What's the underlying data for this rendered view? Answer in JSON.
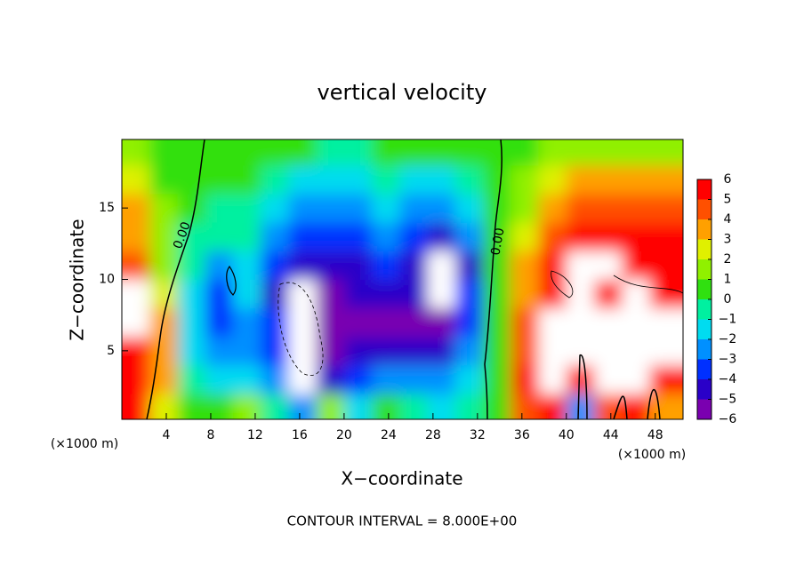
{
  "chart_data": {
    "type": "heatmap",
    "title": "vertical velocity",
    "x_label": "X−coordinate",
    "y_label": "Z−coordinate",
    "x_unit": "(×1000 m)",
    "footer": "CONTOUR INTERVAL = 8.000E+00",
    "contour_labels": [
      "0.00",
      "0.00"
    ],
    "x": [
      1.25,
      3.75,
      6.25,
      8.75,
      11.25,
      13.75,
      16.25,
      18.75,
      21.25,
      23.75,
      26.25,
      28.75,
      31.25,
      33.75,
      36.25,
      38.75,
      41.25,
      43.75,
      46.25,
      48.75
    ],
    "z": [
      1,
      3,
      5,
      7,
      9,
      11,
      13,
      15,
      17,
      19
    ],
    "values": [
      [
        5,
        5,
        5,
        7,
        7,
        4,
        3,
        3,
        2,
        1
      ],
      [
        2,
        3,
        3,
        3,
        2,
        1,
        1,
        1,
        0.5,
        0.5
      ],
      [
        0,
        -1,
        -2,
        -2,
        -2,
        -1,
        -1,
        0,
        0,
        0
      ],
      [
        0,
        -2,
        -3,
        -4,
        -4,
        -3,
        -1,
        -0.5,
        0,
        0
      ],
      [
        1,
        -2,
        -3,
        -3,
        -2,
        -2,
        -1,
        -1,
        0,
        0
      ],
      [
        -1,
        -3,
        -4,
        -4,
        -5,
        -4,
        -3,
        -2,
        -1,
        0
      ],
      [
        -3,
        -7,
        -8,
        -8,
        -7,
        -5,
        -4,
        -3,
        -2,
        0
      ],
      [
        1,
        -5,
        -6,
        -6,
        -6,
        -5,
        -4,
        -3,
        -2,
        -1
      ],
      [
        -2,
        -4,
        -5,
        -6,
        -5,
        -5,
        -4,
        -3,
        -2,
        -1
      ],
      [
        0,
        -3,
        -5,
        -6,
        -5,
        -4,
        -3,
        -2,
        -1,
        0
      ],
      [
        -1,
        -3,
        -5,
        -6,
        -5,
        -5,
        -4,
        -3,
        -2,
        0
      ],
      [
        -2,
        -3,
        -5,
        -6,
        -7,
        -7,
        -5,
        -3,
        -2,
        0
      ],
      [
        -1,
        -2,
        -3,
        -4,
        -4,
        -5,
        -3,
        -2,
        -1,
        0
      ],
      [
        0.5,
        0.5,
        0.5,
        0.5,
        0.5,
        0.5,
        0.5,
        0.5,
        0.5,
        0.5
      ],
      [
        4,
        5,
        4,
        4,
        3,
        3,
        2,
        1,
        1,
        0
      ],
      [
        5,
        7,
        7,
        7,
        6,
        5,
        4,
        3,
        2,
        1
      ],
      [
        -3,
        6,
        7,
        7,
        7,
        7,
        5,
        4,
        3,
        1
      ],
      [
        4,
        7,
        7,
        7,
        5,
        7,
        6,
        4,
        3,
        1
      ],
      [
        5,
        7,
        7,
        7,
        7,
        5,
        5,
        4,
        3,
        1
      ],
      [
        3,
        6,
        7,
        7,
        6,
        5,
        5,
        4,
        3,
        1
      ]
    ],
    "xlim": [
      0,
      50.5
    ],
    "ylim": [
      0.2,
      19.8
    ],
    "xticks": [
      4,
      8,
      12,
      16,
      20,
      24,
      28,
      32,
      36,
      40,
      44,
      48
    ],
    "yticks": [
      5,
      10,
      15
    ],
    "clim": [
      -6,
      6
    ],
    "colorscale": [
      "#7a00b0",
      "#2a00c8",
      "#0030ff",
      "#0090ff",
      "#00dcf0",
      "#00f0a0",
      "#30e010",
      "#90f000",
      "#e0f000",
      "#ffa000",
      "#ff5000",
      "#ff0000"
    ],
    "out_of_range_color": "#ffffff",
    "cticks": [
      {
        "value": -6,
        "label": "−6"
      },
      {
        "value": -5,
        "label": "−5"
      },
      {
        "value": -4,
        "label": "−4"
      },
      {
        "value": -3,
        "label": "−3"
      },
      {
        "value": -2,
        "label": "−2"
      },
      {
        "value": -1,
        "label": "−1"
      },
      0,
      1,
      2,
      3,
      4,
      5,
      6
    ]
  }
}
